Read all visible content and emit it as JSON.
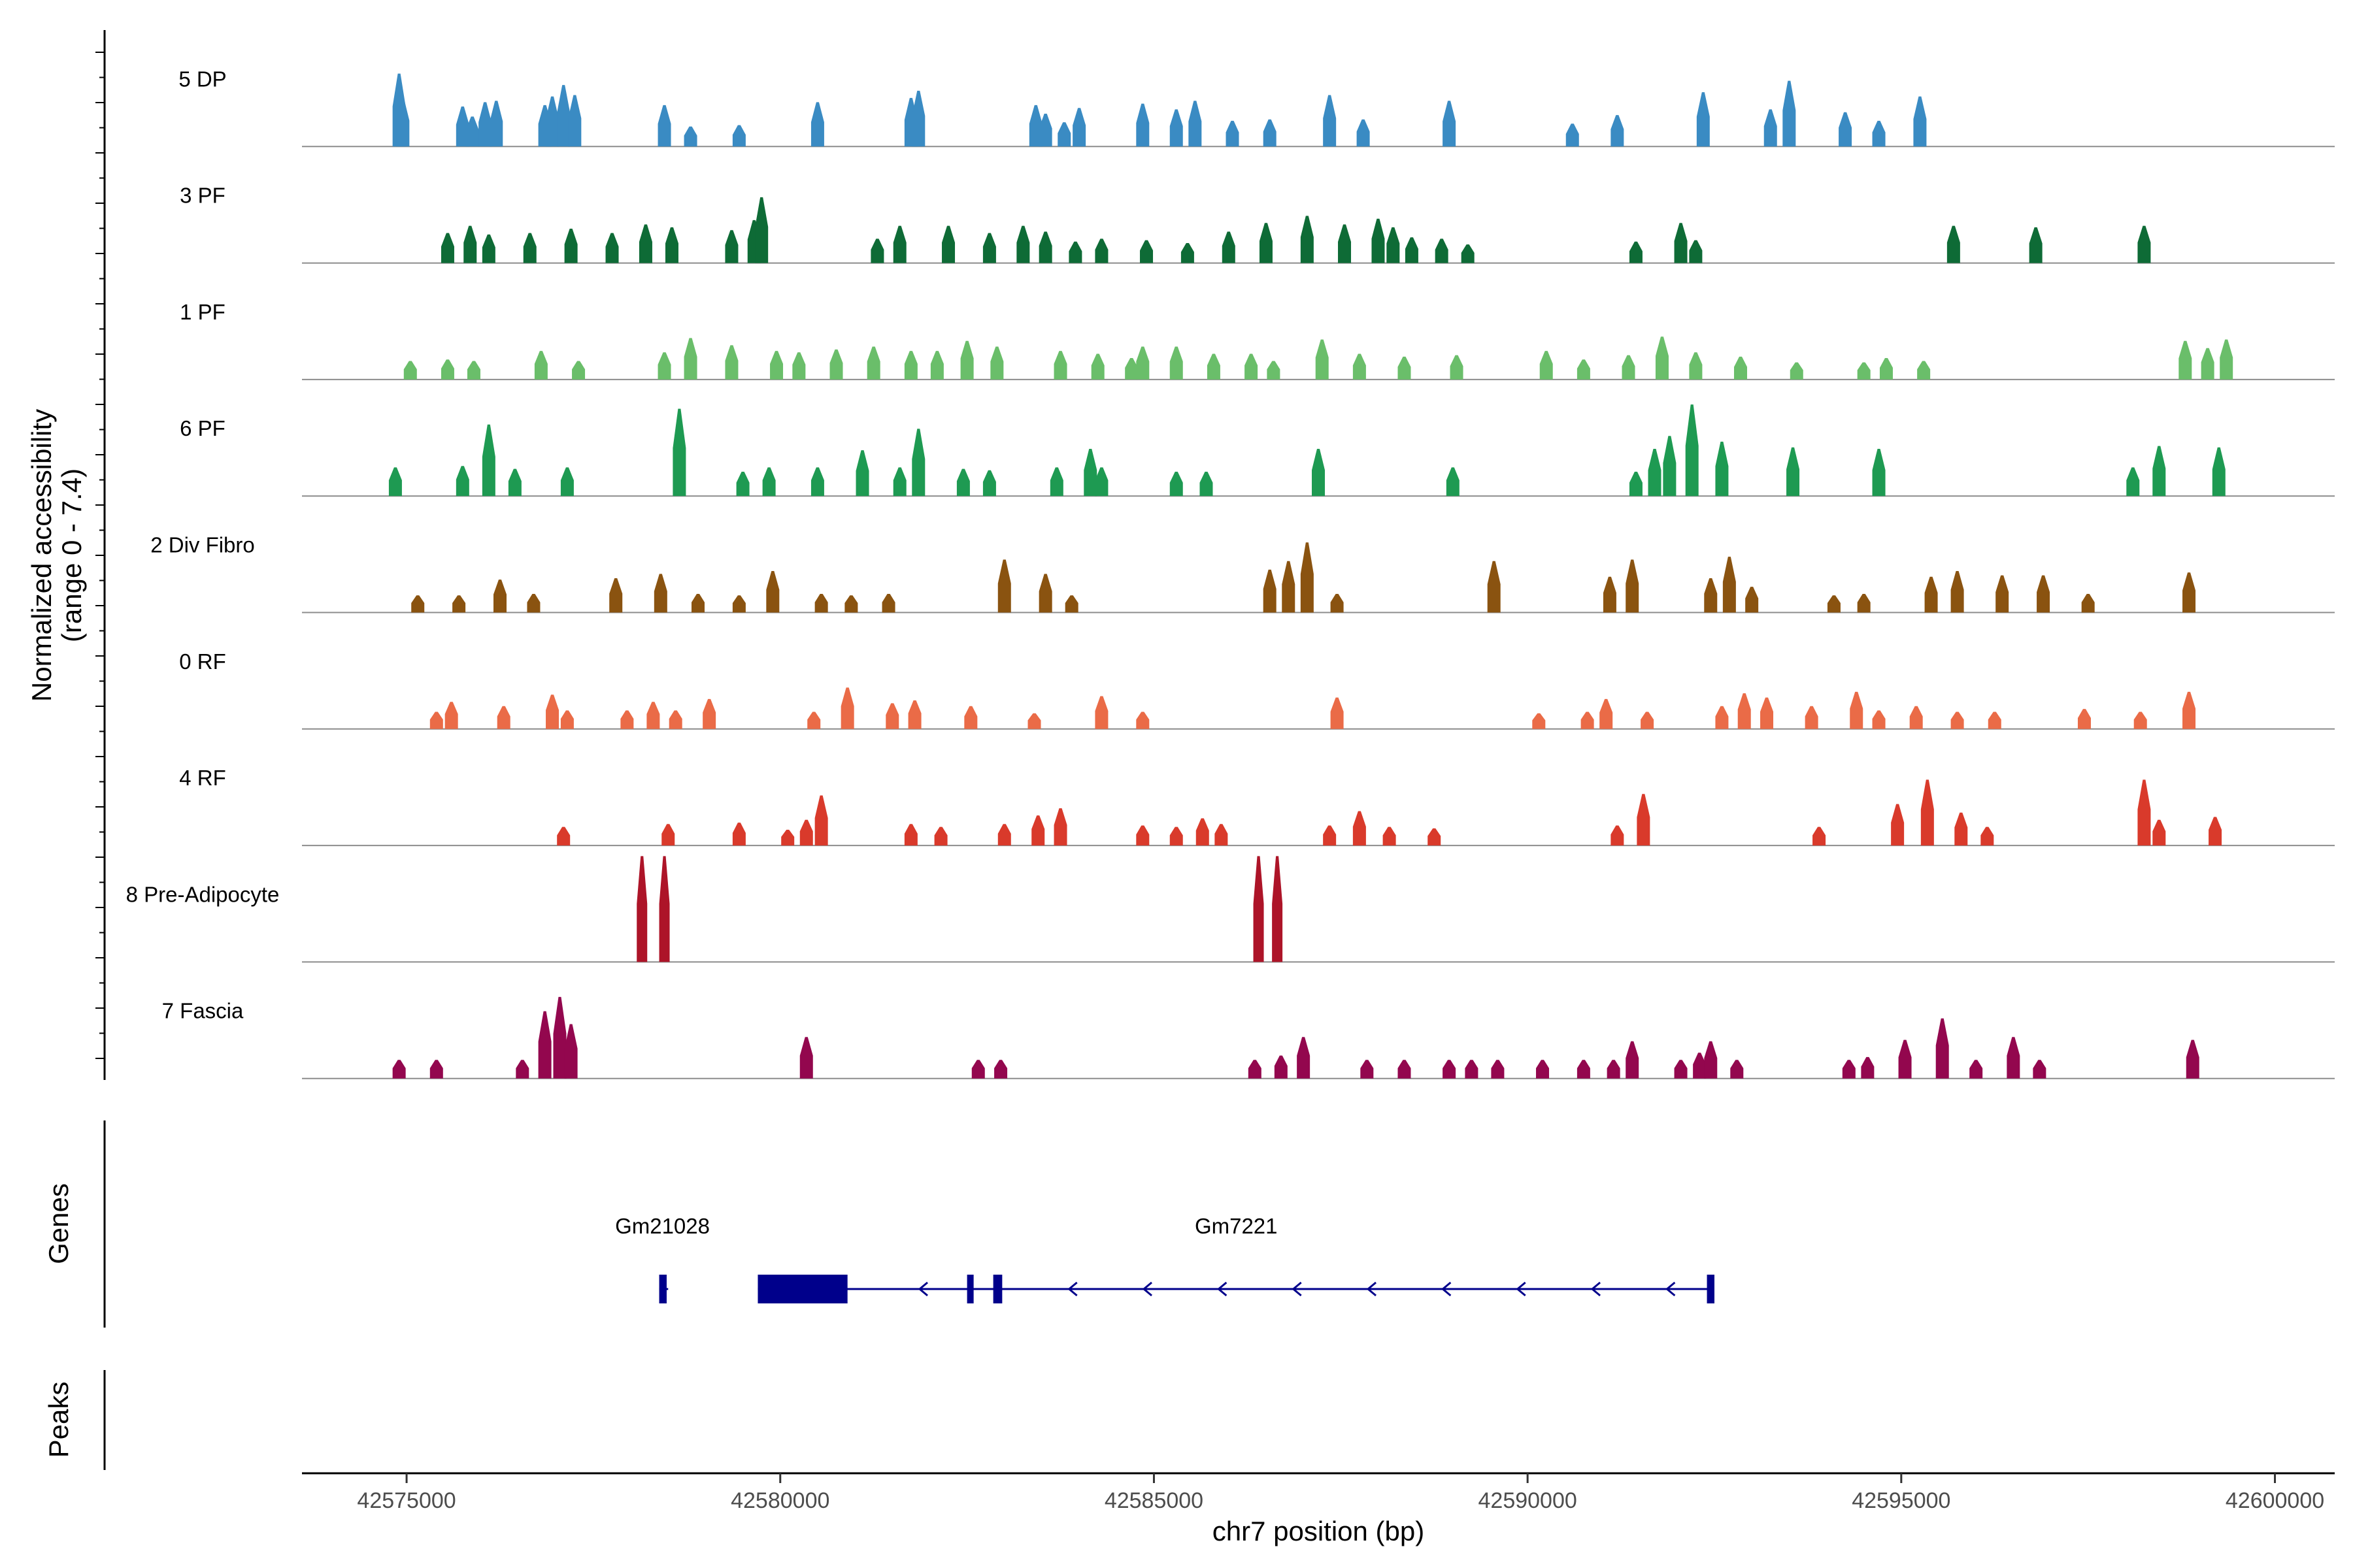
{
  "chart_data": {
    "type": "coverage-track",
    "title": "",
    "xlabel": "chr7 position (bp)",
    "ylabel": "Normalized accessibility",
    "ylabel_sub": "(range 0 - 7.4)",
    "xlim": [
      42573600,
      42600800
    ],
    "ylim": [
      0,
      7.4
    ],
    "x_ticks": [
      42575000,
      42580000,
      42585000,
      42590000,
      42595000,
      42600000
    ],
    "x_tick_labels": [
      "42575000",
      "42580000",
      "42585000",
      "42590000",
      "42595000",
      "42600000"
    ],
    "series": [
      {
        "name": "5 DP",
        "color": "#3a8bc3",
        "peaks": [
          [
            42574900,
            5.1
          ],
          [
            42574950,
            3.3
          ],
          [
            42575750,
            2.8
          ],
          [
            42575880,
            2.1
          ],
          [
            42576050,
            3.1
          ],
          [
            42576200,
            3.2
          ],
          [
            42576850,
            2.9
          ],
          [
            42576950,
            3.5
          ],
          [
            42577100,
            4.3
          ],
          [
            42577250,
            3.6
          ],
          [
            42578450,
            2.9
          ],
          [
            42578800,
            1.4
          ],
          [
            42579450,
            1.5
          ],
          [
            42580500,
            3.1
          ],
          [
            42581750,
            3.4
          ],
          [
            42581850,
            3.9
          ],
          [
            42583420,
            2.9
          ],
          [
            42583550,
            2.3
          ],
          [
            42583800,
            1.7
          ],
          [
            42584000,
            2.7
          ],
          [
            42584850,
            3.0
          ],
          [
            42585300,
            2.6
          ],
          [
            42585550,
            3.2
          ],
          [
            42586050,
            1.8
          ],
          [
            42586550,
            1.9
          ],
          [
            42587350,
            3.6
          ],
          [
            42587800,
            1.9
          ],
          [
            42588950,
            3.2
          ],
          [
            42590600,
            1.6
          ],
          [
            42591200,
            2.2
          ],
          [
            42592350,
            3.8
          ],
          [
            42593250,
            2.6
          ],
          [
            42593500,
            4.6
          ],
          [
            42594250,
            2.4
          ],
          [
            42594700,
            1.8
          ],
          [
            42595250,
            3.5
          ]
        ]
      },
      {
        "name": "3 PF",
        "color": "#0e6b36",
        "peaks": [
          [
            42575550,
            2.1
          ],
          [
            42575850,
            2.6
          ],
          [
            42576100,
            2.0
          ],
          [
            42576650,
            2.1
          ],
          [
            42577200,
            2.4
          ],
          [
            42577750,
            2.1
          ],
          [
            42578200,
            2.7
          ],
          [
            42578550,
            2.5
          ],
          [
            42579350,
            2.3
          ],
          [
            42579650,
            3.0
          ],
          [
            42579750,
            4.6
          ],
          [
            42581300,
            1.7
          ],
          [
            42581600,
            2.6
          ],
          [
            42582250,
            2.6
          ],
          [
            42582800,
            2.1
          ],
          [
            42583250,
            2.6
          ],
          [
            42583550,
            2.2
          ],
          [
            42583950,
            1.5
          ],
          [
            42584300,
            1.7
          ],
          [
            42584900,
            1.6
          ],
          [
            42585450,
            1.4
          ],
          [
            42586000,
            2.2
          ],
          [
            42586500,
            2.8
          ],
          [
            42587050,
            3.3
          ],
          [
            42587550,
            2.7
          ],
          [
            42588000,
            3.1
          ],
          [
            42588200,
            2.5
          ],
          [
            42588450,
            1.8
          ],
          [
            42588850,
            1.7
          ],
          [
            42589200,
            1.3
          ],
          [
            42591450,
            1.5
          ],
          [
            42592050,
            2.8
          ],
          [
            42592250,
            1.6
          ],
          [
            42595700,
            2.6
          ],
          [
            42596800,
            2.5
          ],
          [
            42598250,
            2.6
          ]
        ]
      },
      {
        "name": "1 PF",
        "color": "#6abe6a",
        "peaks": [
          [
            42575050,
            1.3
          ],
          [
            42575550,
            1.4
          ],
          [
            42575900,
            1.3
          ],
          [
            42576800,
            2.0
          ],
          [
            42577300,
            1.3
          ],
          [
            42578450,
            1.9
          ],
          [
            42578800,
            2.9
          ],
          [
            42579350,
            2.4
          ],
          [
            42579950,
            2.0
          ],
          [
            42580250,
            1.9
          ],
          [
            42580750,
            2.1
          ],
          [
            42581250,
            2.3
          ],
          [
            42581750,
            2.0
          ],
          [
            42582100,
            2.0
          ],
          [
            42582500,
            2.7
          ],
          [
            42582900,
            2.3
          ],
          [
            42583750,
            2.0
          ],
          [
            42584250,
            1.8
          ],
          [
            42584700,
            1.5
          ],
          [
            42584850,
            2.3
          ],
          [
            42585300,
            2.3
          ],
          [
            42585800,
            1.8
          ],
          [
            42586300,
            1.8
          ],
          [
            42586600,
            1.3
          ],
          [
            42587250,
            2.8
          ],
          [
            42587750,
            1.8
          ],
          [
            42588350,
            1.6
          ],
          [
            42589050,
            1.7
          ],
          [
            42590250,
            2.0
          ],
          [
            42590750,
            1.4
          ],
          [
            42591350,
            1.7
          ],
          [
            42591800,
            3.0
          ],
          [
            42592250,
            1.9
          ],
          [
            42592850,
            1.6
          ],
          [
            42593600,
            1.2
          ],
          [
            42594500,
            1.2
          ],
          [
            42594800,
            1.5
          ],
          [
            42595300,
            1.3
          ],
          [
            42598800,
            2.7
          ],
          [
            42599100,
            2.2
          ],
          [
            42599350,
            2.8
          ]
        ]
      },
      {
        "name": "6 PF",
        "color": "#1e9a52",
        "peaks": [
          [
            42574850,
            2.0
          ],
          [
            42575750,
            2.1
          ],
          [
            42576100,
            5.0
          ],
          [
            42576450,
            1.9
          ],
          [
            42577150,
            2.0
          ],
          [
            42578650,
            6.1
          ],
          [
            42579500,
            1.7
          ],
          [
            42579850,
            2.0
          ],
          [
            42580500,
            2.0
          ],
          [
            42581100,
            3.2
          ],
          [
            42581600,
            2.0
          ],
          [
            42581850,
            4.7
          ],
          [
            42582450,
            1.9
          ],
          [
            42582800,
            1.8
          ],
          [
            42583700,
            2.0
          ],
          [
            42584150,
            3.3
          ],
          [
            42584300,
            2.0
          ],
          [
            42585300,
            1.7
          ],
          [
            42585700,
            1.7
          ],
          [
            42587200,
            3.3
          ],
          [
            42589000,
            2.0
          ],
          [
            42591450,
            1.7
          ],
          [
            42591700,
            3.3
          ],
          [
            42591900,
            4.2
          ],
          [
            42592200,
            6.4
          ],
          [
            42592600,
            3.8
          ],
          [
            42593550,
            3.4
          ],
          [
            42594700,
            3.3
          ],
          [
            42598100,
            2.0
          ],
          [
            42598450,
            3.5
          ],
          [
            42599250,
            3.4
          ]
        ]
      },
      {
        "name": "2 Div Fibro",
        "color": "#8a5310",
        "peaks": [
          [
            42575150,
            1.2
          ],
          [
            42575700,
            1.2
          ],
          [
            42576250,
            2.3
          ],
          [
            42576700,
            1.3
          ],
          [
            42577800,
            2.4
          ],
          [
            42578400,
            2.7
          ],
          [
            42578900,
            1.3
          ],
          [
            42579450,
            1.2
          ],
          [
            42579900,
            2.9
          ],
          [
            42580550,
            1.3
          ],
          [
            42580950,
            1.2
          ],
          [
            42581450,
            1.3
          ],
          [
            42583000,
            3.7
          ],
          [
            42583550,
            2.7
          ],
          [
            42583900,
            1.2
          ],
          [
            42586550,
            3.0
          ],
          [
            42586800,
            3.6
          ],
          [
            42587050,
            4.9
          ],
          [
            42587450,
            1.3
          ],
          [
            42589550,
            3.6
          ],
          [
            42591100,
            2.5
          ],
          [
            42591400,
            3.7
          ],
          [
            42592450,
            2.4
          ],
          [
            42592700,
            3.9
          ],
          [
            42593000,
            1.8
          ],
          [
            42594100,
            1.2
          ],
          [
            42594500,
            1.3
          ],
          [
            42595400,
            2.5
          ],
          [
            42595750,
            2.9
          ],
          [
            42596350,
            2.6
          ],
          [
            42596900,
            2.6
          ],
          [
            42597500,
            1.3
          ],
          [
            42598850,
            2.8
          ]
        ]
      },
      {
        "name": "0 RF",
        "color": "#ea6b47",
        "peaks": [
          [
            42575400,
            1.2
          ],
          [
            42575600,
            1.9
          ],
          [
            42576300,
            1.6
          ],
          [
            42576950,
            2.4
          ],
          [
            42577150,
            1.3
          ],
          [
            42577950,
            1.3
          ],
          [
            42578300,
            1.9
          ],
          [
            42578600,
            1.3
          ],
          [
            42579050,
            2.1
          ],
          [
            42580450,
            1.2
          ],
          [
            42580900,
            2.9
          ],
          [
            42581500,
            1.8
          ],
          [
            42581800,
            2.0
          ],
          [
            42582550,
            1.6
          ],
          [
            42583400,
            1.1
          ],
          [
            42584300,
            2.3
          ],
          [
            42584850,
            1.2
          ],
          [
            42587450,
            2.2
          ],
          [
            42590150,
            1.1
          ],
          [
            42590800,
            1.2
          ],
          [
            42591050,
            2.1
          ],
          [
            42591600,
            1.2
          ],
          [
            42592600,
            1.6
          ],
          [
            42592900,
            2.5
          ],
          [
            42593200,
            2.2
          ],
          [
            42593800,
            1.6
          ],
          [
            42594400,
            2.6
          ],
          [
            42594700,
            1.3
          ],
          [
            42595200,
            1.6
          ],
          [
            42595750,
            1.2
          ],
          [
            42596250,
            1.2
          ],
          [
            42597450,
            1.4
          ],
          [
            42598200,
            1.2
          ],
          [
            42598850,
            2.6
          ]
        ]
      },
      {
        "name": "4 RF",
        "color": "#d93a2b",
        "peaks": [
          [
            42577100,
            1.3
          ],
          [
            42578500,
            1.5
          ],
          [
            42579450,
            1.6
          ],
          [
            42580100,
            1.1
          ],
          [
            42580350,
            1.8
          ],
          [
            42580550,
            3.5
          ],
          [
            42581750,
            1.5
          ],
          [
            42582150,
            1.3
          ],
          [
            42583000,
            1.5
          ],
          [
            42583450,
            2.1
          ],
          [
            42583750,
            2.6
          ],
          [
            42584850,
            1.4
          ],
          [
            42585300,
            1.3
          ],
          [
            42585650,
            1.9
          ],
          [
            42585900,
            1.5
          ],
          [
            42587350,
            1.4
          ],
          [
            42587750,
            2.4
          ],
          [
            42588150,
            1.3
          ],
          [
            42588750,
            1.2
          ],
          [
            42591550,
            3.6
          ],
          [
            42591200,
            1.4
          ],
          [
            42593900,
            1.3
          ],
          [
            42594950,
            2.9
          ],
          [
            42595350,
            4.6
          ],
          [
            42595800,
            2.3
          ],
          [
            42596150,
            1.3
          ],
          [
            42598250,
            4.6
          ],
          [
            42598450,
            1.8
          ],
          [
            42599200,
            2.0
          ]
        ]
      },
      {
        "name": "8 Pre-Adipocyte",
        "color": "#ad1428",
        "peaks": [
          [
            42578150,
            7.4
          ],
          [
            42578450,
            7.4
          ],
          [
            42586400,
            7.4
          ],
          [
            42586650,
            7.4
          ]
        ]
      },
      {
        "name": "7 Fascia",
        "color": "#93074e",
        "peaks": [
          [
            42574900,
            1.3
          ],
          [
            42575400,
            1.3
          ],
          [
            42576550,
            1.3
          ],
          [
            42576850,
            4.7
          ],
          [
            42577050,
            5.7
          ],
          [
            42577200,
            3.8
          ],
          [
            42580350,
            2.9
          ],
          [
            42582650,
            1.3
          ],
          [
            42582950,
            1.3
          ],
          [
            42586350,
            1.3
          ],
          [
            42586700,
            1.6
          ],
          [
            42587000,
            2.9
          ],
          [
            42587850,
            1.3
          ],
          [
            42588350,
            1.3
          ],
          [
            42588950,
            1.3
          ],
          [
            42589250,
            1.3
          ],
          [
            42589600,
            1.3
          ],
          [
            42590200,
            1.3
          ],
          [
            42590750,
            1.3
          ],
          [
            42591150,
            1.3
          ],
          [
            42591400,
            2.6
          ],
          [
            42592050,
            1.3
          ],
          [
            42592300,
            1.8
          ],
          [
            42592450,
            2.6
          ],
          [
            42592800,
            1.3
          ],
          [
            42594300,
            1.3
          ],
          [
            42594550,
            1.5
          ],
          [
            42595050,
            2.7
          ],
          [
            42595550,
            4.2
          ],
          [
            42596000,
            1.3
          ],
          [
            42596500,
            2.9
          ],
          [
            42596850,
            1.3
          ],
          [
            42598900,
            2.7
          ]
        ]
      }
    ],
    "genes": [
      {
        "name": "Gm21028",
        "start": 42578380,
        "end": 42578500,
        "strand": "-",
        "exons": [
          [
            42578380,
            42578480
          ]
        ]
      },
      {
        "name": "Gm7221",
        "start": 42579700,
        "end": 42592500,
        "strand": "-",
        "exons": [
          [
            42579700,
            42580900
          ],
          [
            42582500,
            42582560
          ],
          [
            42582850,
            42582970
          ],
          [
            42592400,
            42592500
          ]
        ]
      }
    ],
    "panels": {
      "genes_title": "Genes",
      "peaks_title": "Peaks"
    },
    "peaks_track": []
  }
}
